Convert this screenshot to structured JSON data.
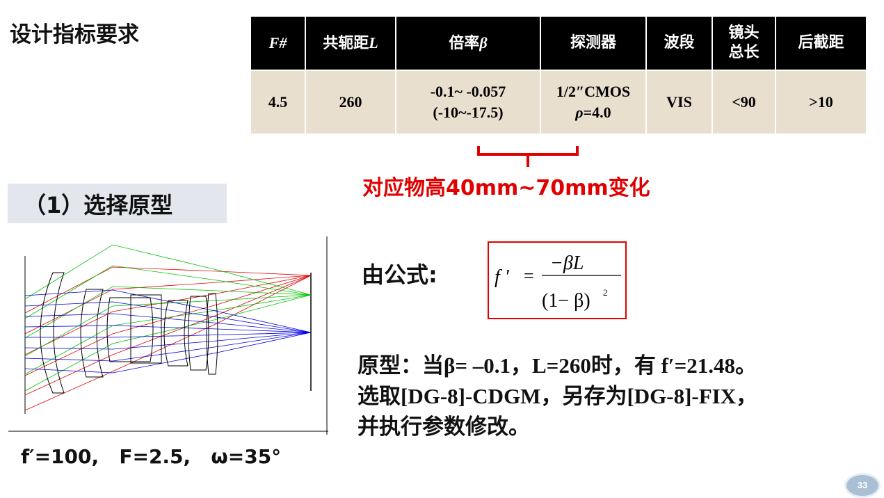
{
  "title": "设计指标要求",
  "spec_table": {
    "headers": [
      "F#",
      "共轭距L",
      "倍率β",
      "探测器",
      "波段",
      "镜头\n总长",
      "后截距"
    ],
    "header_parts": {
      "f_number": "F#",
      "conjugate_text": "共轭距",
      "conjugate_var": "L",
      "mag_text": "倍率",
      "mag_var": "β",
      "detector": "探测器",
      "band": "波段",
      "length_line1": "镜头",
      "length_line2": "总长",
      "bfl": "后截距"
    },
    "values": {
      "f_number": "4.5",
      "conjugate": "260",
      "mag_line1": "-0.1~ -0.057",
      "mag_line2": "(-10~-17.5)",
      "detector_line1": "1/2″CMOS",
      "detector_rho": "ρ",
      "detector_line2": "=4.0",
      "band": "VIS",
      "length": "<90",
      "bfl": ">10"
    }
  },
  "annotation": "对应物高40mm~70mm变化",
  "step_title": "（1）选择原型",
  "prototype_params": "f′=100,   F=2.5,   ω=35°",
  "formula_label": "由公式:",
  "formula": {
    "lhs": "f ′",
    "eq": "=",
    "numerator": "−βL",
    "denominator": "(1− β)",
    "exponent": "2"
  },
  "result": {
    "line1": "原型：当β= –0.1，L=260时，有 f′=21.48。",
    "line2": "选取[DG-8]-CDGM，另存为[DG-8]-FIX，",
    "line3": "并执行参数修改。"
  },
  "page_number": "33",
  "colors": {
    "header_bg": "#000000",
    "cell_bg": "#e8dfcf",
    "accent_red": "#e00000",
    "ray_red": "#e00000",
    "ray_green": "#00c000",
    "ray_blue": "#0000e0"
  }
}
